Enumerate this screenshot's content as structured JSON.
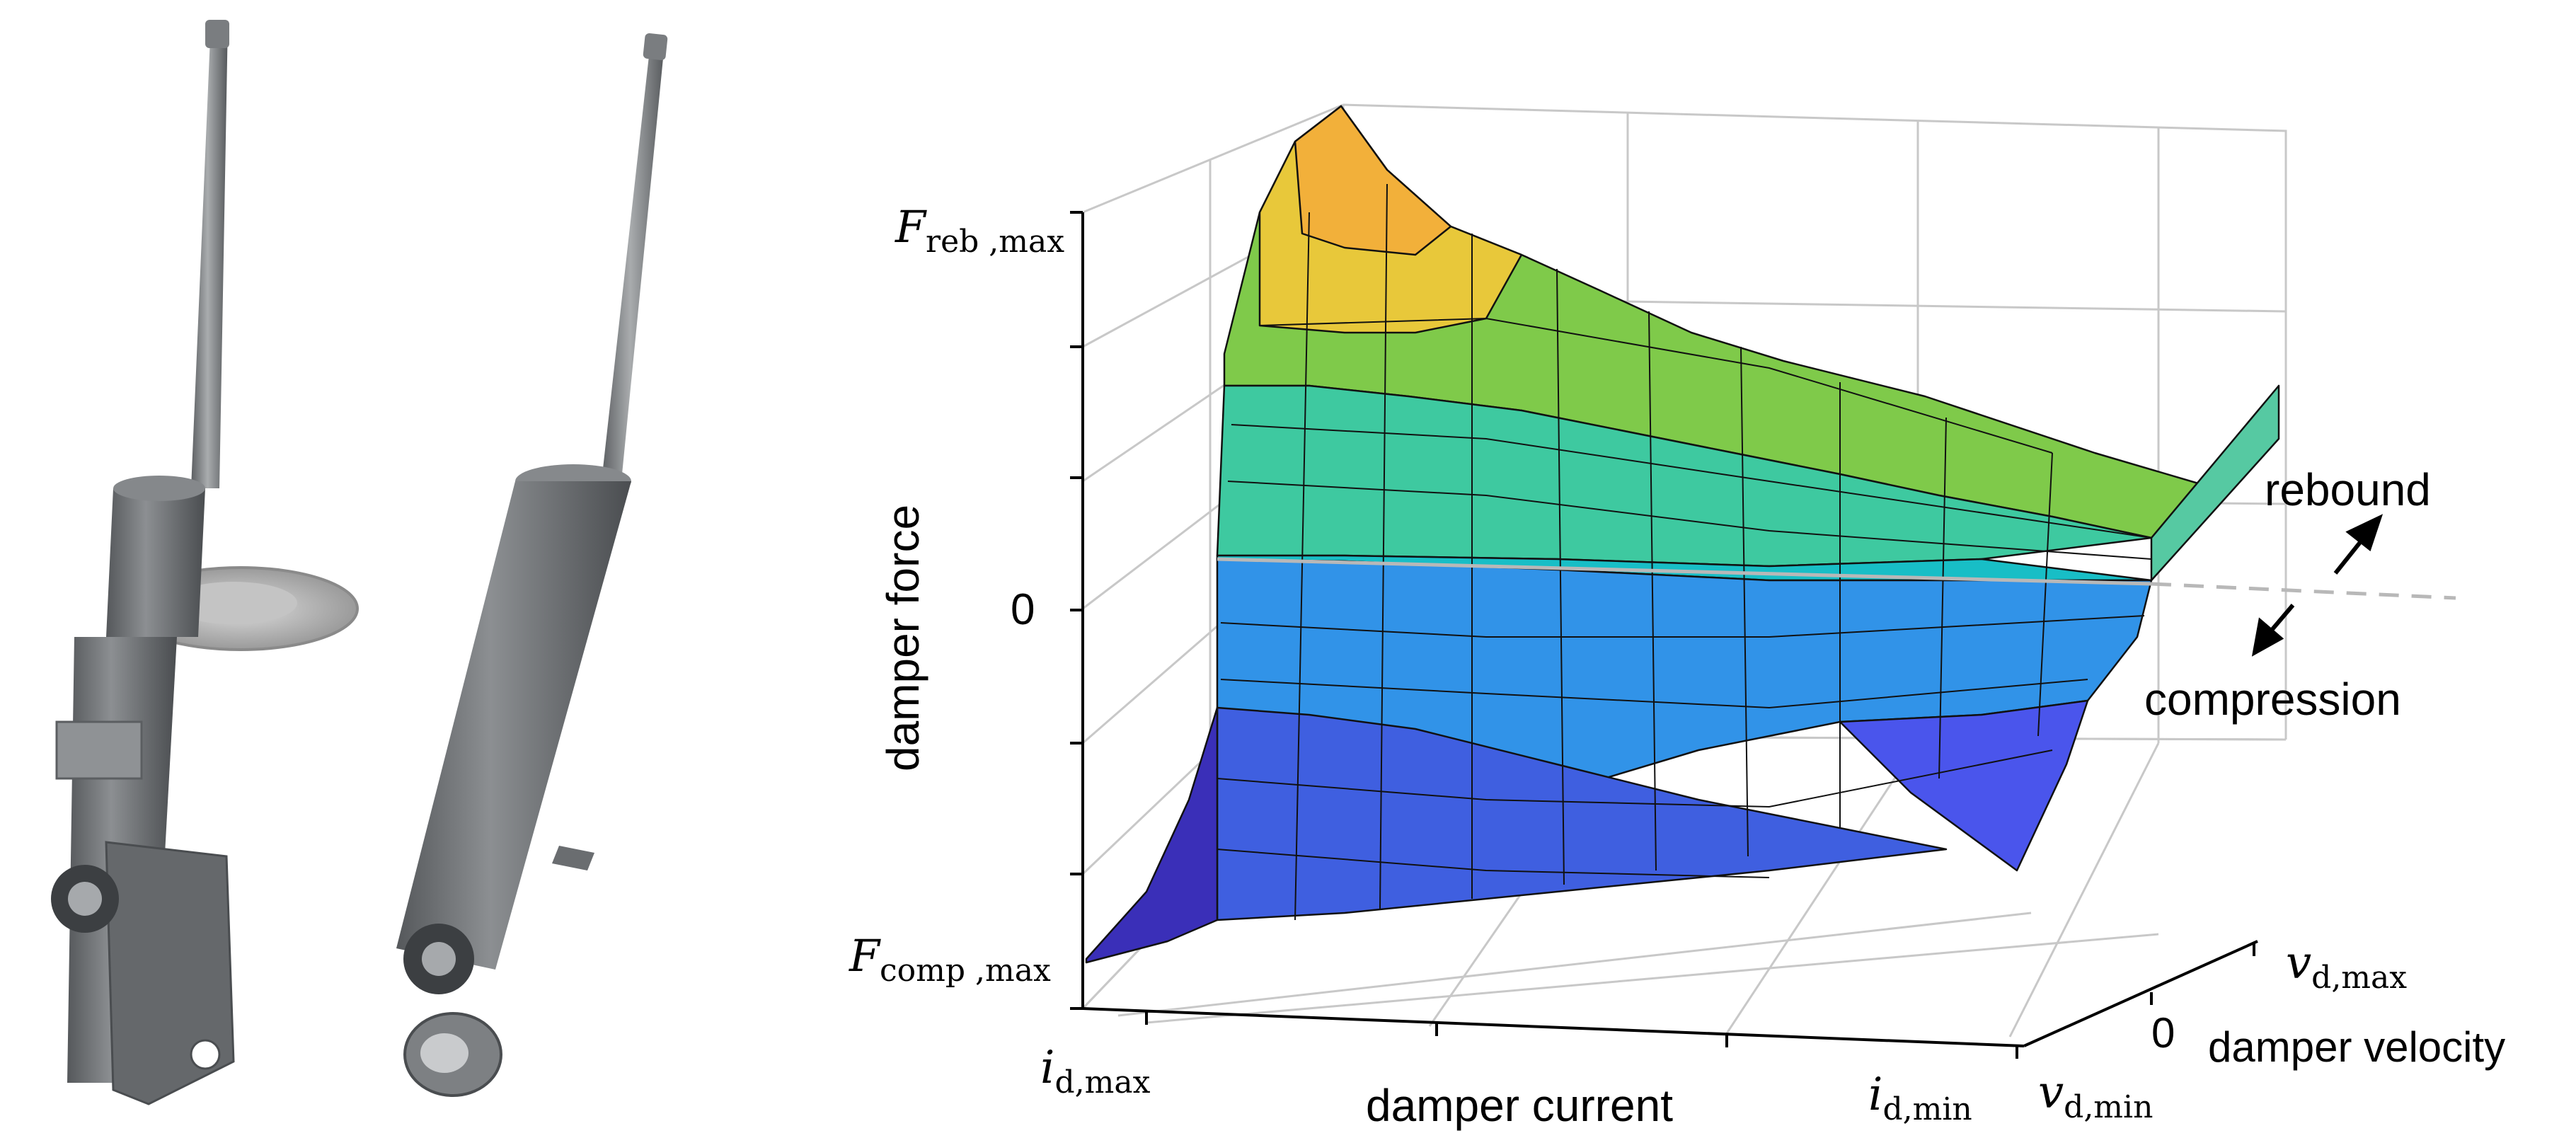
{
  "figure": {
    "labels": {
      "f_reb_max": {
        "var": "F",
        "sub": "reb ,max"
      },
      "f_comp_max": {
        "var": "F",
        "sub": "comp ,max"
      },
      "i_d_max": {
        "var": "i",
        "sub": "d,max"
      },
      "i_d_min": {
        "var": "i",
        "sub": "d,min"
      },
      "v_d_max": {
        "var": "v",
        "sub": "d,max"
      },
      "v_d_min": {
        "var": "v",
        "sub": "d,min"
      },
      "zero_force": "0",
      "zero_velocity": "0"
    },
    "axis_titles": {
      "force": "damper force",
      "current": "damper current",
      "velocity": "damper velocity"
    },
    "annotations": {
      "rebound": "rebound",
      "compression": "compression"
    }
  },
  "colors": {
    "strut_body": "#6f7275",
    "strut_dark": "#4a4d50",
    "strut_light": "#a2a5a8",
    "surface_low": "#3a2fb8",
    "surface_mid": "#1fb8c8",
    "surface_high": "#f5e02a",
    "grid": "#c8c8c8",
    "zero_line": "#b8b8b8"
  }
}
